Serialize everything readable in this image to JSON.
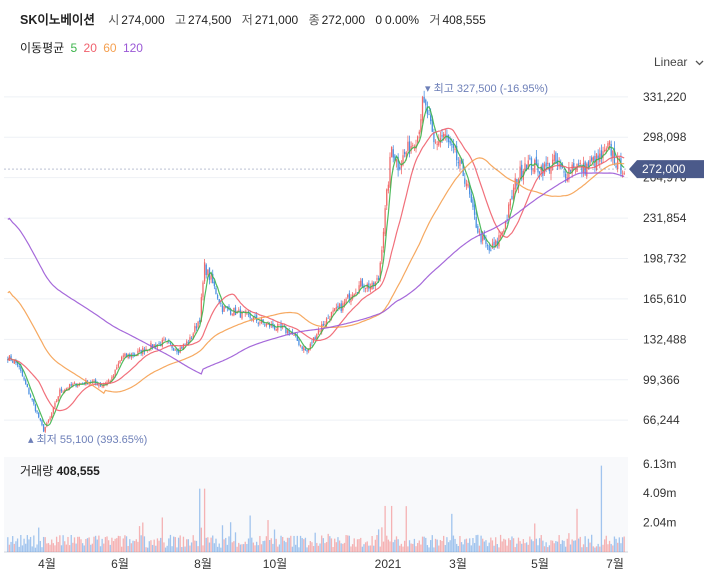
{
  "header": {
    "name": "SK이노베이션",
    "open_label": "시",
    "open": "274,000",
    "high_label": "고",
    "high": "274,500",
    "low_label": "저",
    "low": "271,000",
    "close_label": "종",
    "close": "272,000",
    "change": "0",
    "change_pct": "0.00%",
    "volume_label": "거",
    "volume": "408,555"
  },
  "ma": {
    "label": "이동평균",
    "items": [
      {
        "period": "5",
        "color": "#3cb44b"
      },
      {
        "period": "20",
        "color": "#f0616d"
      },
      {
        "period": "60",
        "color": "#f5a050"
      },
      {
        "period": "120",
        "color": "#9b59d6"
      }
    ]
  },
  "scale_button": "Linear",
  "colors": {
    "up": "#f26b6b",
    "down": "#4a90e2",
    "price_tag": "#4b5a8a",
    "annotation": "#6d7fb8"
  },
  "chart_data": {
    "type": "candlestick",
    "price_axis": {
      "ticks": [
        "331,220",
        "298,098",
        "264,976",
        "231,854",
        "198,732",
        "165,610",
        "132,488",
        "99,366",
        "66,244"
      ],
      "range": [
        50000,
        345000
      ]
    },
    "volume_axis": {
      "ticks": [
        "6.13m",
        "4.09m",
        "2.04m"
      ],
      "label": "거래량",
      "value": "408,555"
    },
    "x_ticks": [
      "4월",
      "6월",
      "8월",
      "10월",
      "2021",
      "3월",
      "5월",
      "7월"
    ],
    "current_price": "272,000",
    "annotations": {
      "high": {
        "label": "최고",
        "value": "327,500 (-16.95%)"
      },
      "low": {
        "label": "최저",
        "value": "55,100 (393.65%)"
      }
    },
    "close_keypoints": [
      [
        0,
        118000
      ],
      [
        6,
        112000
      ],
      [
        12,
        92000
      ],
      [
        18,
        72000
      ],
      [
        22,
        58000
      ],
      [
        26,
        68000
      ],
      [
        32,
        90000
      ],
      [
        40,
        95000
      ],
      [
        50,
        98000
      ],
      [
        58,
        95000
      ],
      [
        64,
        100000
      ],
      [
        70,
        118000
      ],
      [
        78,
        120000
      ],
      [
        86,
        126000
      ],
      [
        96,
        130000
      ],
      [
        105,
        124000
      ],
      [
        112,
        132000
      ],
      [
        118,
        150000
      ],
      [
        121,
        192000
      ],
      [
        126,
        178000
      ],
      [
        132,
        158000
      ],
      [
        140,
        155000
      ],
      [
        150,
        150000
      ],
      [
        158,
        145000
      ],
      [
        166,
        142000
      ],
      [
        174,
        138000
      ],
      [
        180,
        128000
      ],
      [
        184,
        122000
      ],
      [
        190,
        138000
      ],
      [
        198,
        152000
      ],
      [
        206,
        160000
      ],
      [
        212,
        172000
      ],
      [
        218,
        178000
      ],
      [
        224,
        175000
      ],
      [
        228,
        182000
      ],
      [
        230,
        210000
      ],
      [
        233,
        250000
      ],
      [
        236,
        290000
      ],
      [
        240,
        275000
      ],
      [
        246,
        288000
      ],
      [
        252,
        300000
      ],
      [
        255,
        325000
      ],
      [
        258,
        318000
      ],
      [
        262,
        292000
      ],
      [
        268,
        300000
      ],
      [
        276,
        280000
      ],
      [
        282,
        262000
      ],
      [
        286,
        236000
      ],
      [
        290,
        218000
      ],
      [
        296,
        205000
      ],
      [
        300,
        210000
      ],
      [
        306,
        228000
      ],
      [
        312,
        260000
      ],
      [
        318,
        278000
      ],
      [
        324,
        274000
      ],
      [
        330,
        272000
      ],
      [
        336,
        278000
      ],
      [
        342,
        268000
      ],
      [
        348,
        276000
      ],
      [
        354,
        272000
      ],
      [
        360,
        278000
      ],
      [
        366,
        282000
      ],
      [
        370,
        290000
      ],
      [
        374,
        278000
      ],
      [
        378,
        272000
      ]
    ],
    "moving_averages": [
      {
        "period": 5
      },
      {
        "period": 20
      },
      {
        "period": 60
      },
      {
        "period": 120
      }
    ]
  }
}
